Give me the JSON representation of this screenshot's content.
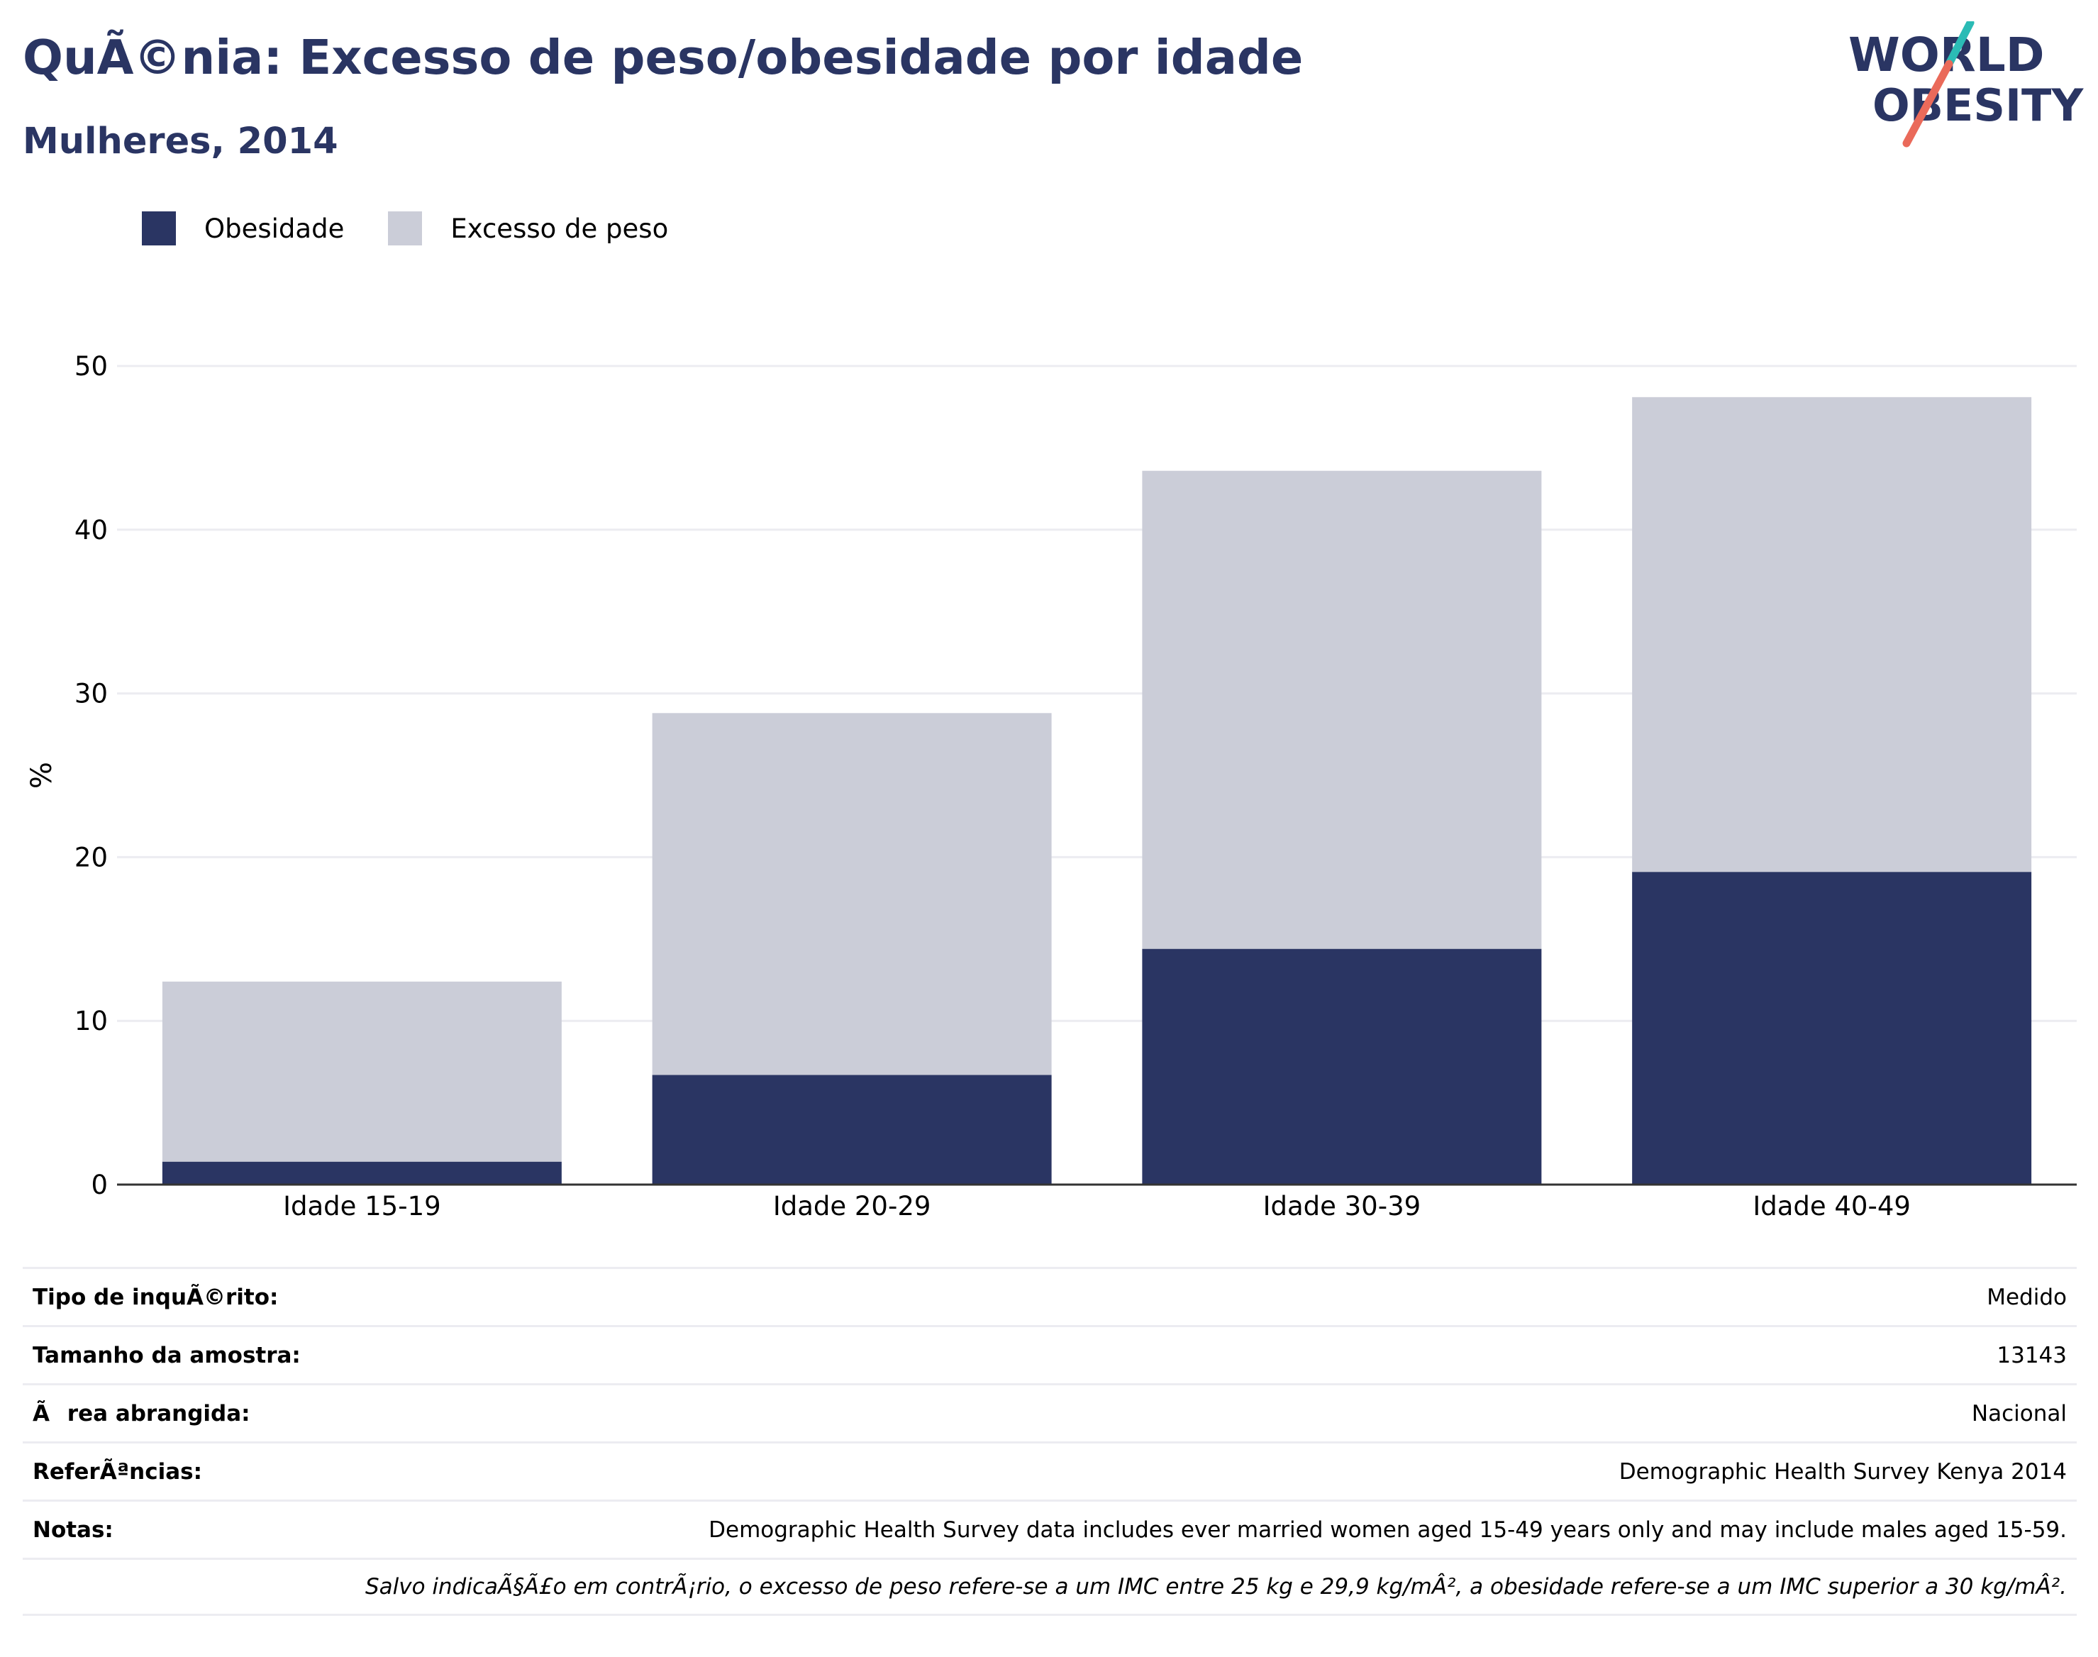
{
  "header": {
    "title": "QuÃ©nia: Excesso de peso/obesidade por idade",
    "subtitle": "Mulheres, 2014"
  },
  "logo": {
    "line1": "WORLD",
    "line2": "OBESITY",
    "icon": "world-obesity-logo"
  },
  "colors": {
    "obesity": "#2a3563",
    "overweight": "#cbcdd8",
    "accent_teal": "#2bbbb5",
    "accent_coral": "#ea6a5a",
    "grid": "#ececf1",
    "axis": "#333333"
  },
  "chart_data": {
    "type": "bar",
    "stacked": true,
    "categories": [
      "Idade 15-19",
      "Idade 20-29",
      "Idade 30-39",
      "Idade 40-49"
    ],
    "series": [
      {
        "name": "Obesidade",
        "values": [
          1.4,
          6.7,
          14.4,
          19.1
        ]
      },
      {
        "name": "Excesso de peso",
        "values": [
          11.0,
          22.1,
          29.2,
          29.0
        ]
      }
    ],
    "ylabel": "%",
    "xlabel": "",
    "ylim": [
      0,
      50
    ],
    "yticks": [
      0,
      10,
      20,
      30,
      40,
      50
    ],
    "grid": true,
    "legend_position": "top-left"
  },
  "info": {
    "rows": [
      {
        "label": "Tipo de inquÃ©rito:",
        "value": "Medido"
      },
      {
        "label": "Tamanho da amostra:",
        "value": "13143"
      },
      {
        "label": "Ãrea abrangida:",
        "value": "Nacional"
      },
      {
        "label": "ReferÃªncias:",
        "value": "Demographic Health Survey Kenya 2014"
      },
      {
        "label": "Notas:",
        "value": "Demographic Health Survey data includes ever married women aged 15-49 years only and may include males aged 15-59."
      }
    ],
    "footnote": "Salvo indicaÃ§Ã£o em contrÃ¡rio, o excesso de peso refere-se a um IMC entre 25 kg e 29,9 kg/mÂ², a obesidade refere-se a um IMC superior a 30 kg/mÂ²."
  }
}
